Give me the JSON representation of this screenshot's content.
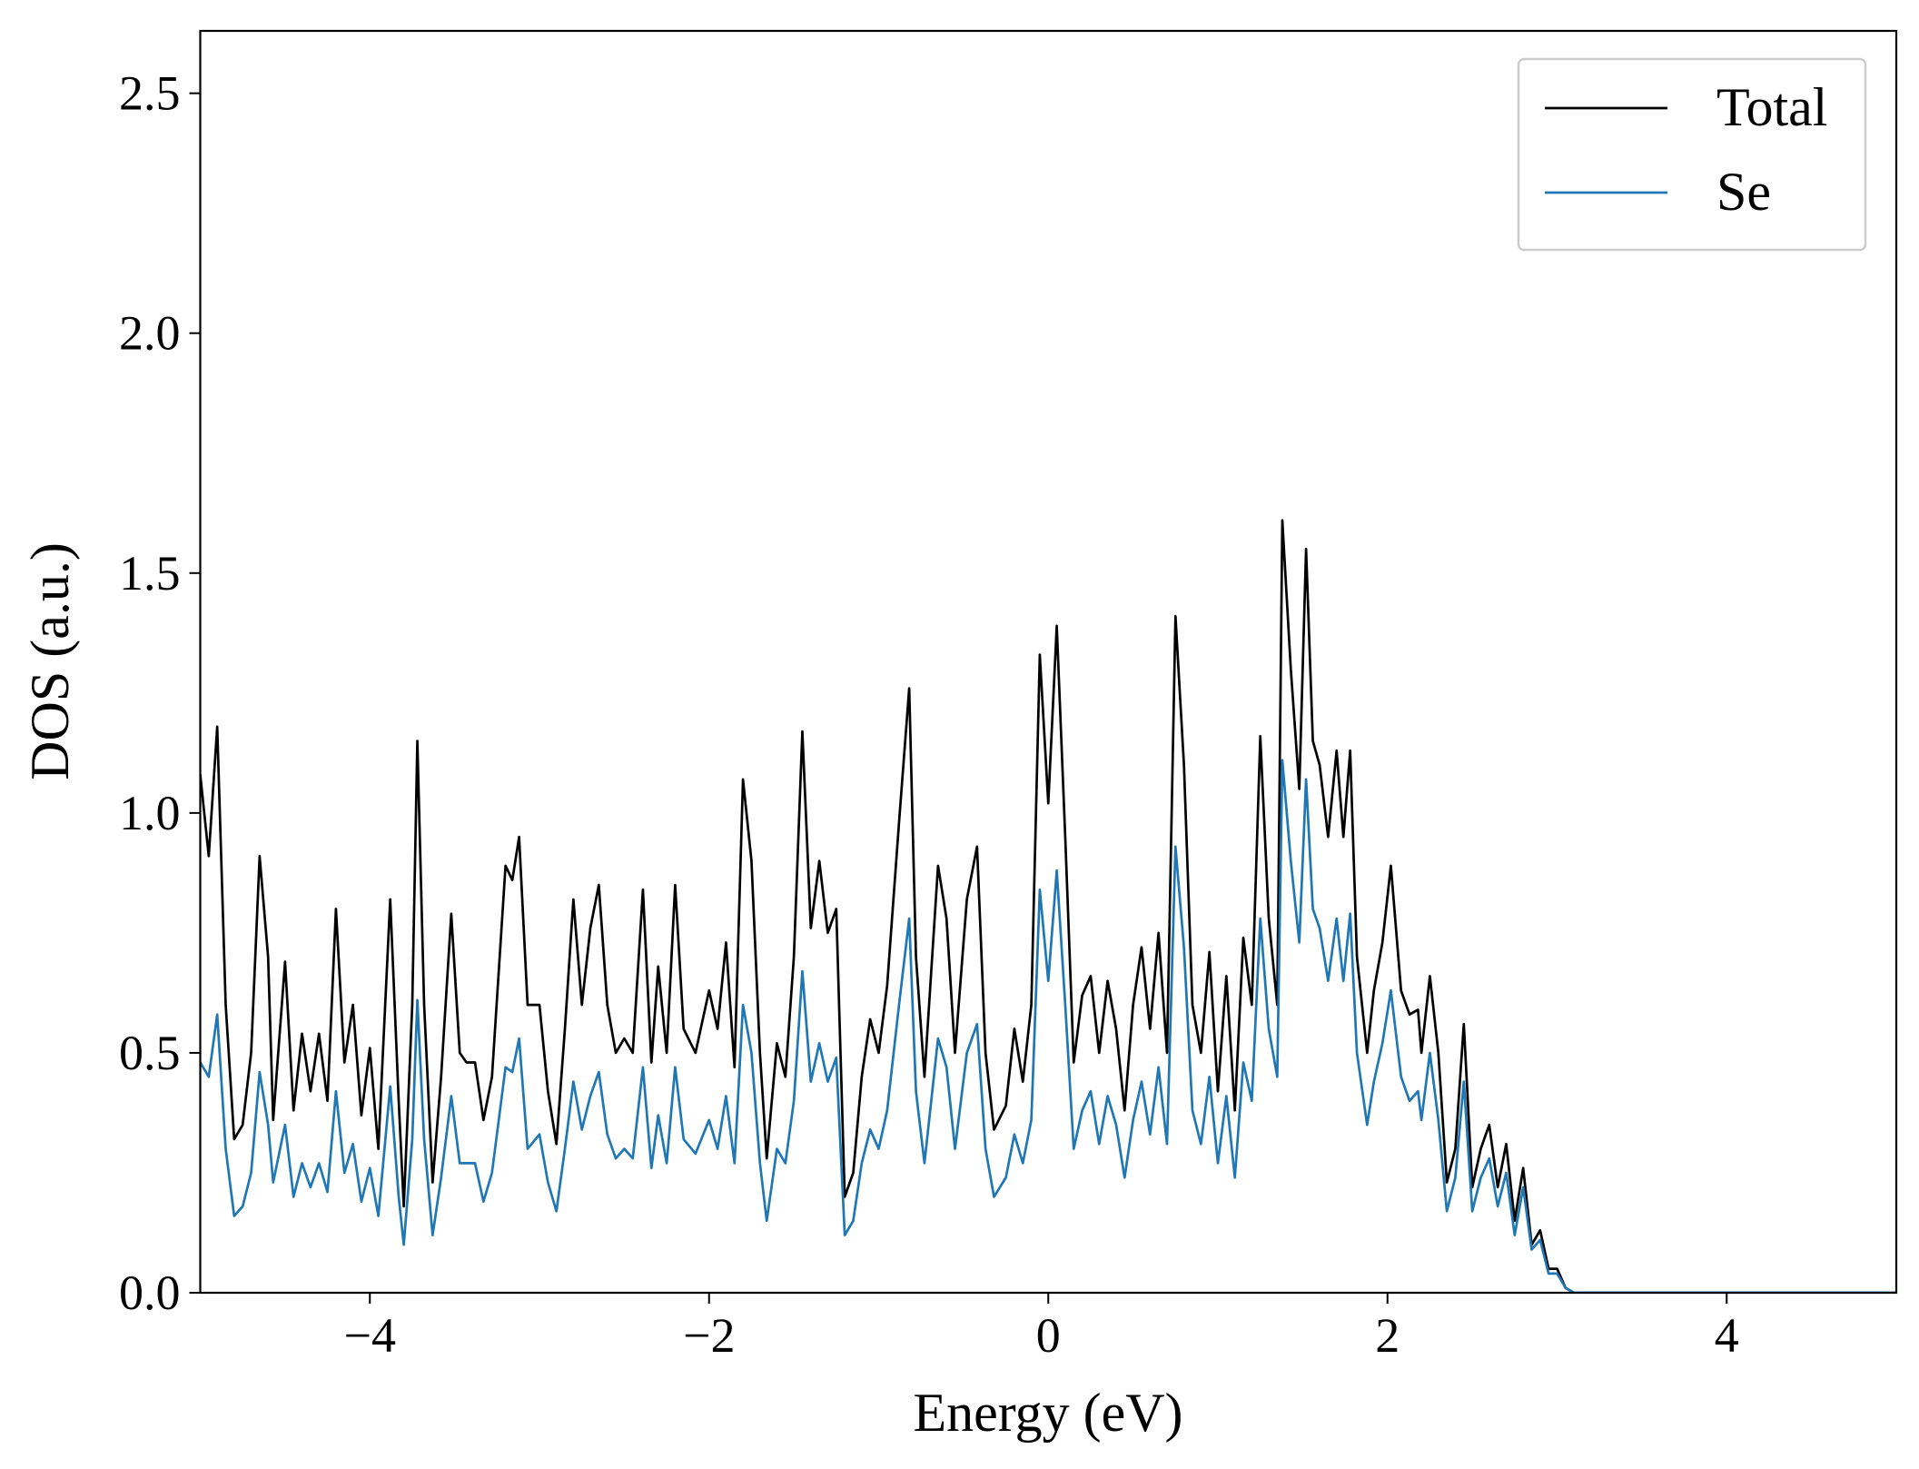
{
  "chart_data": {
    "type": "line",
    "xlabel": "Energy (eV)",
    "ylabel": "DOS (a.u.)",
    "xlim": [
      -5,
      5
    ],
    "ylim": [
      0,
      2.63
    ],
    "xticks": [
      {
        "value": -4,
        "label": "−4"
      },
      {
        "value": -2,
        "label": "−2"
      },
      0,
      2,
      4
    ],
    "yticks": [
      {
        "value": 0,
        "label": "0.0"
      },
      {
        "value": 0.5,
        "label": "0.5"
      },
      {
        "value": 1,
        "label": "1.0"
      },
      {
        "value": 1.5,
        "label": "1.5"
      },
      {
        "value": 2,
        "label": "2.0"
      },
      {
        "value": 2.5,
        "label": "2.5"
      }
    ],
    "legend": "upper right",
    "x": [
      -5,
      -4.95,
      -4.9,
      -4.85,
      -4.8,
      -4.75,
      -4.7,
      -4.65,
      -4.6,
      -4.57,
      -4.5,
      -4.45,
      -4.4,
      -4.35,
      -4.3,
      -4.25,
      -4.2,
      -4.15,
      -4.1,
      -4.05,
      -4,
      -3.95,
      -3.88,
      -3.83,
      -3.8,
      -3.75,
      -3.72,
      -3.68,
      -3.63,
      -3.58,
      -3.52,
      -3.47,
      -3.43,
      -3.38,
      -3.33,
      -3.28,
      -3.2,
      -3.16,
      -3.12,
      -3.07,
      -3,
      -2.95,
      -2.9,
      -2.85,
      -2.8,
      -2.75,
      -2.7,
      -2.65,
      -2.6,
      -2.55,
      -2.5,
      -2.45,
      -2.39,
      -2.34,
      -2.3,
      -2.25,
      -2.2,
      -2.15,
      -2.08,
      -2,
      -1.95,
      -1.9,
      -1.85,
      -1.8,
      -1.75,
      -1.7,
      -1.66,
      -1.6,
      -1.55,
      -1.5,
      -1.45,
      -1.4,
      -1.35,
      -1.3,
      -1.25,
      -1.2,
      -1.15,
      -1.1,
      -1.05,
      -1,
      -0.95,
      -0.88,
      -0.82,
      -0.78,
      -0.73,
      -0.65,
      -0.6,
      -0.55,
      -0.48,
      -0.42,
      -0.37,
      -0.32,
      -0.25,
      -0.2,
      -0.15,
      -0.1,
      -0.05,
      0,
      0.05,
      0.1,
      0.15,
      0.2,
      0.25,
      0.3,
      0.35,
      0.4,
      0.45,
      0.5,
      0.55,
      0.6,
      0.65,
      0.7,
      0.75,
      0.8,
      0.85,
      0.9,
      0.95,
      1,
      1.05,
      1.1,
      1.15,
      1.2,
      1.25,
      1.3,
      1.35,
      1.38,
      1.43,
      1.48,
      1.52,
      1.56,
      1.6,
      1.65,
      1.7,
      1.74,
      1.78,
      1.82,
      1.88,
      1.92,
      1.97,
      2.02,
      2.08,
      2.13,
      2.18,
      2.2,
      2.25,
      2.3,
      2.35,
      2.4,
      2.45,
      2.5,
      2.55,
      2.6,
      2.65,
      2.7,
      2.75,
      2.8,
      2.85,
      2.9,
      2.95,
      3,
      3.05,
      3.1,
      3.5,
      4,
      4.5,
      5
    ],
    "series": [
      {
        "name": "Total",
        "color": "#000000",
        "values": [
          1.08,
          0.91,
          1.18,
          0.6,
          0.32,
          0.35,
          0.5,
          0.91,
          0.7,
          0.36,
          0.69,
          0.38,
          0.54,
          0.42,
          0.54,
          0.4,
          0.8,
          0.48,
          0.6,
          0.37,
          0.51,
          0.3,
          0.82,
          0.4,
          0.18,
          0.6,
          1.15,
          0.6,
          0.23,
          0.45,
          0.79,
          0.5,
          0.48,
          0.48,
          0.36,
          0.45,
          0.89,
          0.86,
          0.95,
          0.6,
          0.6,
          0.42,
          0.31,
          0.55,
          0.82,
          0.6,
          0.76,
          0.85,
          0.6,
          0.5,
          0.53,
          0.5,
          0.84,
          0.48,
          0.68,
          0.5,
          0.85,
          0.55,
          0.5,
          0.63,
          0.55,
          0.73,
          0.47,
          1.07,
          0.9,
          0.5,
          0.28,
          0.52,
          0.45,
          0.7,
          1.17,
          0.76,
          0.9,
          0.75,
          0.8,
          0.2,
          0.25,
          0.45,
          0.57,
          0.5,
          0.64,
          0.98,
          1.26,
          0.7,
          0.45,
          0.89,
          0.78,
          0.5,
          0.82,
          0.93,
          0.5,
          0.34,
          0.39,
          0.55,
          0.44,
          0.6,
          1.33,
          1.02,
          1.39,
          0.95,
          0.48,
          0.62,
          0.66,
          0.5,
          0.65,
          0.55,
          0.38,
          0.6,
          0.72,
          0.55,
          0.75,
          0.5,
          1.41,
          1.1,
          0.6,
          0.5,
          0.71,
          0.42,
          0.66,
          0.38,
          0.74,
          0.6,
          1.16,
          0.78,
          0.6,
          1.61,
          1.3,
          1.05,
          1.55,
          1.15,
          1.1,
          0.95,
          1.13,
          0.95,
          1.13,
          0.7,
          0.5,
          0.63,
          0.73,
          0.89,
          0.63,
          0.58,
          0.59,
          0.5,
          0.66,
          0.5,
          0.23,
          0.3,
          0.56,
          0.22,
          0.3,
          0.35,
          0.22,
          0.31,
          0.15,
          0.26,
          0.1,
          0.13,
          0.05,
          0.05,
          0.01,
          0,
          0,
          0,
          0,
          0
        ]
      },
      {
        "name": "Se",
        "color": "#1f77b4",
        "values": [
          0.48,
          0.45,
          0.58,
          0.3,
          0.16,
          0.18,
          0.25,
          0.46,
          0.35,
          0.23,
          0.35,
          0.2,
          0.27,
          0.22,
          0.27,
          0.21,
          0.42,
          0.25,
          0.31,
          0.19,
          0.26,
          0.16,
          0.43,
          0.2,
          0.1,
          0.32,
          0.61,
          0.32,
          0.12,
          0.24,
          0.41,
          0.27,
          0.27,
          0.27,
          0.19,
          0.25,
          0.47,
          0.46,
          0.53,
          0.3,
          0.33,
          0.23,
          0.17,
          0.3,
          0.44,
          0.34,
          0.41,
          0.46,
          0.33,
          0.28,
          0.3,
          0.28,
          0.47,
          0.26,
          0.37,
          0.27,
          0.47,
          0.32,
          0.29,
          0.36,
          0.3,
          0.41,
          0.27,
          0.6,
          0.5,
          0.27,
          0.15,
          0.3,
          0.27,
          0.4,
          0.67,
          0.44,
          0.52,
          0.44,
          0.49,
          0.12,
          0.15,
          0.27,
          0.34,
          0.3,
          0.38,
          0.6,
          0.78,
          0.42,
          0.27,
          0.53,
          0.47,
          0.3,
          0.5,
          0.56,
          0.3,
          0.2,
          0.24,
          0.33,
          0.27,
          0.36,
          0.84,
          0.65,
          0.88,
          0.6,
          0.3,
          0.38,
          0.42,
          0.31,
          0.41,
          0.35,
          0.24,
          0.36,
          0.44,
          0.33,
          0.47,
          0.31,
          0.93,
          0.72,
          0.38,
          0.31,
          0.45,
          0.27,
          0.41,
          0.24,
          0.48,
          0.4,
          0.78,
          0.55,
          0.45,
          1.11,
          0.9,
          0.73,
          1.07,
          0.8,
          0.76,
          0.65,
          0.78,
          0.65,
          0.79,
          0.5,
          0.35,
          0.44,
          0.52,
          0.63,
          0.45,
          0.4,
          0.42,
          0.36,
          0.5,
          0.36,
          0.17,
          0.24,
          0.44,
          0.17,
          0.24,
          0.28,
          0.18,
          0.25,
          0.12,
          0.22,
          0.09,
          0.11,
          0.04,
          0.04,
          0.01,
          0,
          0,
          0,
          0,
          0
        ]
      }
    ]
  }
}
